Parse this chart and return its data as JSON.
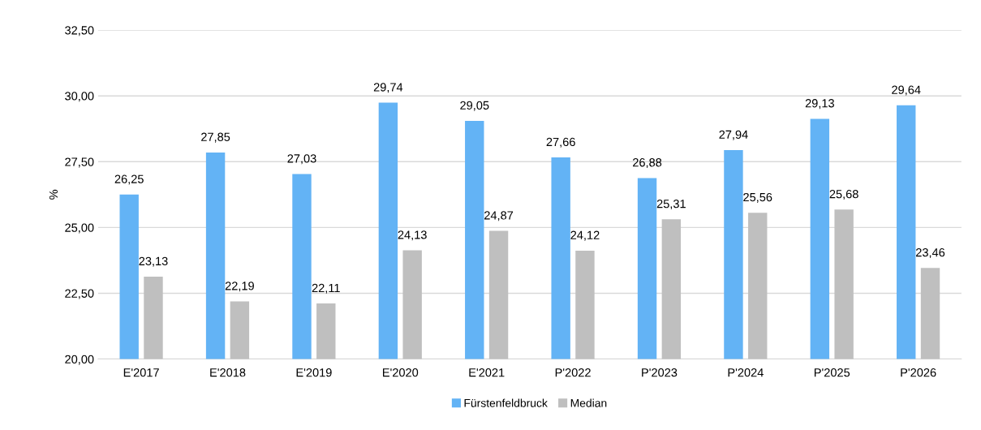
{
  "chart_data": {
    "type": "bar",
    "ylabel": "%",
    "categories": [
      "E'2017",
      "E'2018",
      "E'2019",
      "E'2020",
      "E'2021",
      "P'2022",
      "P'2023",
      "P'2024",
      "P'2025",
      "P'2026"
    ],
    "series": [
      {
        "name": "Fürstenfeldbruck",
        "color": "#63b3f5",
        "values": [
          26.25,
          27.85,
          27.03,
          29.74,
          29.05,
          27.66,
          26.88,
          27.94,
          29.13,
          29.64
        ],
        "value_labels": [
          "26,25",
          "27,85",
          "27,03",
          "29,74",
          "29,05",
          "27,66",
          "26,88",
          "27,94",
          "29,13",
          "29,64"
        ]
      },
      {
        "name": "Median",
        "color": "#bfbfbf",
        "values": [
          23.13,
          22.19,
          22.11,
          24.13,
          24.87,
          24.12,
          25.31,
          25.56,
          25.68,
          23.46
        ],
        "value_labels": [
          "23,13",
          "22,19",
          "22,11",
          "24,13",
          "24,87",
          "24,12",
          "25,31",
          "25,56",
          "25,68",
          "23,46"
        ]
      }
    ],
    "ylim": [
      20,
      32.5
    ],
    "yticks": [
      {
        "value": 20,
        "label": "20,00"
      },
      {
        "value": 22.5,
        "label": "22,50"
      },
      {
        "value": 25,
        "label": "25,00"
      },
      {
        "value": 27.5,
        "label": "27,50"
      },
      {
        "value": 30,
        "label": "30,00"
      },
      {
        "value": 32.5,
        "label": "32,50"
      }
    ],
    "grid": "y",
    "legend": "bottom"
  }
}
